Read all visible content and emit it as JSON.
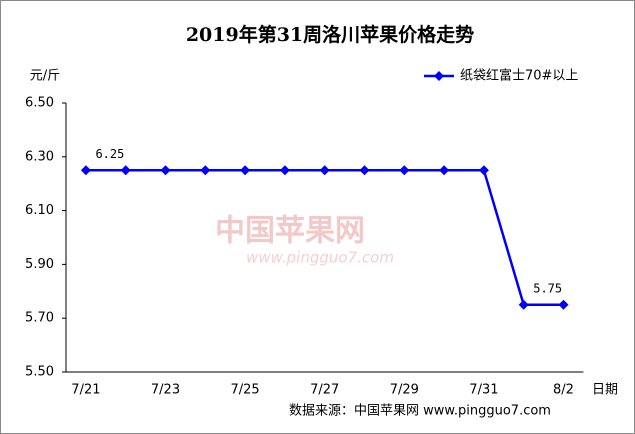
{
  "chart_data": {
    "type": "line",
    "title": "2019年第31周洛川苹果价格走势",
    "y_label": "元/斤",
    "x_label": "日期",
    "source": "数据来源：中国苹果网 www.pingguo7.com",
    "watermark": "中国苹果网",
    "watermark_url": "www.pingguo7.com",
    "categories": [
      "7/21",
      null,
      "7/23",
      null,
      "7/25",
      null,
      "7/27",
      null,
      "7/29",
      null,
      "7/31",
      null,
      "8/2"
    ],
    "series": [
      {
        "name": "纸袋红富士70#以上",
        "color": "#0000ff",
        "values": [
          6.25,
          6.25,
          6.25,
          6.25,
          6.25,
          6.25,
          6.25,
          6.25,
          6.25,
          6.25,
          6.25,
          5.75,
          5.75
        ],
        "value_labels": [
          "6.25",
          null,
          null,
          null,
          null,
          null,
          null,
          null,
          null,
          null,
          null,
          "5.75",
          null
        ]
      }
    ],
    "ylim": [
      5.5,
      6.5
    ],
    "yticks": [
      {
        "value": 5.5,
        "label": "5.50"
      },
      {
        "value": 5.7,
        "label": "5.70"
      },
      {
        "value": 5.9,
        "label": "5.90"
      },
      {
        "value": 6.1,
        "label": "6.10"
      },
      {
        "value": 6.3,
        "label": "6.30"
      },
      {
        "value": 6.5,
        "label": "6.50"
      }
    ],
    "grid": false,
    "legend": "top-right"
  }
}
